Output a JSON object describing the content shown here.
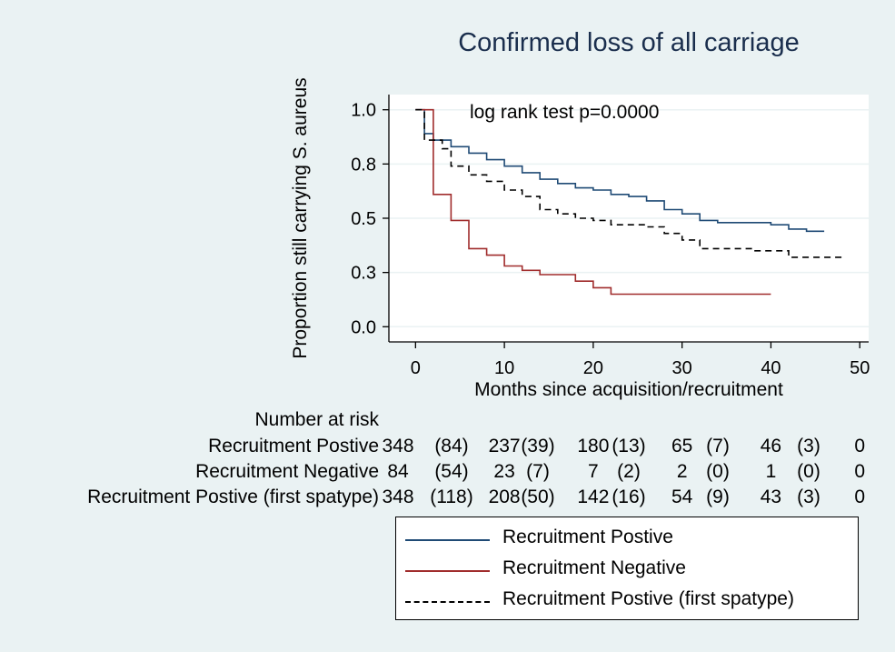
{
  "chart_data": {
    "type": "line",
    "title": "Confirmed loss of all carriage",
    "xlabel": "Months since acquisition/recruitment",
    "ylabel": "Proportion still carrying S. aureus",
    "xlim": [
      -3,
      51
    ],
    "ylim": [
      -0.07,
      1.07
    ],
    "x_ticks": [
      0,
      10,
      20,
      30,
      40,
      50
    ],
    "x_tick_labels": [
      "0",
      "10",
      "20",
      "30",
      "40",
      "50"
    ],
    "y_ticks": [
      0,
      0.25,
      0.5,
      0.75,
      1.0
    ],
    "y_tick_labels": [
      "0.0",
      "0.3",
      "0.5",
      "0.8",
      "1.0"
    ],
    "grid": true,
    "annotation": "log rank test p=0.0000",
    "legend_placement": "bottom",
    "series": [
      {
        "name": "Recruitment Postive",
        "color": "#1f4a75",
        "style": "solid",
        "points": [
          [
            0,
            1.0
          ],
          [
            1,
            1.0
          ],
          [
            1,
            0.89
          ],
          [
            2,
            0.89
          ],
          [
            2,
            0.86
          ],
          [
            4,
            0.86
          ],
          [
            4,
            0.83
          ],
          [
            6,
            0.83
          ],
          [
            6,
            0.8
          ],
          [
            8,
            0.8
          ],
          [
            8,
            0.77
          ],
          [
            10,
            0.77
          ],
          [
            10,
            0.74
          ],
          [
            12,
            0.74
          ],
          [
            12,
            0.71
          ],
          [
            14,
            0.71
          ],
          [
            14,
            0.68
          ],
          [
            16,
            0.68
          ],
          [
            16,
            0.66
          ],
          [
            18,
            0.66
          ],
          [
            18,
            0.64
          ],
          [
            20,
            0.64
          ],
          [
            20,
            0.63
          ],
          [
            22,
            0.63
          ],
          [
            22,
            0.61
          ],
          [
            24,
            0.61
          ],
          [
            24,
            0.6
          ],
          [
            26,
            0.6
          ],
          [
            26,
            0.58
          ],
          [
            28,
            0.58
          ],
          [
            28,
            0.54
          ],
          [
            30,
            0.54
          ],
          [
            30,
            0.52
          ],
          [
            32,
            0.52
          ],
          [
            32,
            0.49
          ],
          [
            34,
            0.49
          ],
          [
            34,
            0.48
          ],
          [
            40,
            0.48
          ],
          [
            40,
            0.47
          ],
          [
            42,
            0.47
          ],
          [
            42,
            0.45
          ],
          [
            44,
            0.45
          ],
          [
            44,
            0.44
          ],
          [
            46,
            0.44
          ]
        ]
      },
      {
        "name": "Recruitment Negative",
        "color": "#a02c2c",
        "style": "solid",
        "points": [
          [
            0,
            1.0
          ],
          [
            2,
            1.0
          ],
          [
            2,
            0.61
          ],
          [
            4,
            0.61
          ],
          [
            4,
            0.49
          ],
          [
            6,
            0.49
          ],
          [
            6,
            0.36
          ],
          [
            8,
            0.36
          ],
          [
            8,
            0.33
          ],
          [
            10,
            0.33
          ],
          [
            10,
            0.28
          ],
          [
            12,
            0.28
          ],
          [
            12,
            0.26
          ],
          [
            14,
            0.26
          ],
          [
            14,
            0.24
          ],
          [
            18,
            0.24
          ],
          [
            18,
            0.21
          ],
          [
            20,
            0.21
          ],
          [
            20,
            0.18
          ],
          [
            22,
            0.18
          ],
          [
            22,
            0.15
          ],
          [
            40,
            0.15
          ]
        ]
      },
      {
        "name": "Recruitment Postive (first spatype)",
        "color": "#000000",
        "style": "dashed",
        "points": [
          [
            0,
            1.0
          ],
          [
            1,
            1.0
          ],
          [
            1,
            0.86
          ],
          [
            3,
            0.86
          ],
          [
            3,
            0.82
          ],
          [
            4,
            0.82
          ],
          [
            4,
            0.74
          ],
          [
            6,
            0.74
          ],
          [
            6,
            0.7
          ],
          [
            8,
            0.7
          ],
          [
            8,
            0.67
          ],
          [
            10,
            0.67
          ],
          [
            10,
            0.63
          ],
          [
            12,
            0.63
          ],
          [
            12,
            0.6
          ],
          [
            14,
            0.6
          ],
          [
            14,
            0.54
          ],
          [
            16,
            0.54
          ],
          [
            16,
            0.52
          ],
          [
            18,
            0.52
          ],
          [
            18,
            0.5
          ],
          [
            20,
            0.5
          ],
          [
            20,
            0.49
          ],
          [
            22,
            0.49
          ],
          [
            22,
            0.47
          ],
          [
            26,
            0.47
          ],
          [
            26,
            0.46
          ],
          [
            28,
            0.46
          ],
          [
            28,
            0.43
          ],
          [
            30,
            0.43
          ],
          [
            30,
            0.4
          ],
          [
            32,
            0.4
          ],
          [
            32,
            0.36
          ],
          [
            38,
            0.36
          ],
          [
            38,
            0.35
          ],
          [
            42,
            0.35
          ],
          [
            42,
            0.32
          ],
          [
            48,
            0.32
          ]
        ]
      }
    ],
    "number_at_risk": {
      "title": "Number at risk",
      "groups": [
        {
          "label": "Recruitment Postive",
          "values": [
            "348",
            "(84)",
            "237",
            "(39)",
            "180",
            "(13)",
            "65",
            "(7)",
            "46",
            "(3)",
            "0"
          ]
        },
        {
          "label": "Recruitment Negative",
          "values": [
            "84",
            "(54)",
            "23",
            "(7)",
            "7",
            "(2)",
            "2",
            "(0)",
            "1",
            "(0)",
            "0"
          ]
        },
        {
          "label": "Recruitment Postive (first spatype)",
          "values": [
            "348",
            "(118)",
            "208",
            "(50)",
            "142",
            "(16)",
            "54",
            "(9)",
            "43",
            "(3)",
            "0"
          ]
        }
      ]
    }
  }
}
